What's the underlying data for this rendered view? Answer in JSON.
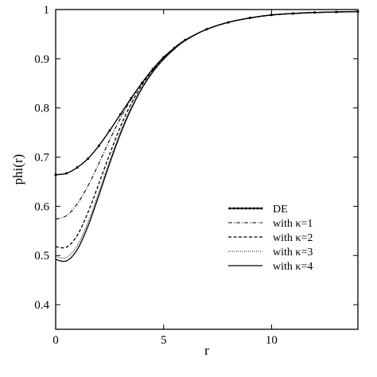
{
  "chart_data": {
    "type": "line",
    "title": "",
    "xlabel": "r",
    "ylabel": "phi(r)",
    "xlim": [
      0,
      14
    ],
    "ylim": [
      0.35,
      1.0
    ],
    "xticks": [
      0,
      5,
      10
    ],
    "yticks": [
      0.4,
      0.5,
      0.6,
      0.7,
      0.8,
      0.9,
      1
    ],
    "grid": false,
    "legend_position": "lower-right",
    "x": [
      0,
      0.5,
      1,
      1.5,
      2,
      2.5,
      3,
      3.5,
      4,
      4.5,
      5,
      5.5,
      6,
      7,
      8,
      9,
      10,
      11,
      12,
      13,
      14
    ],
    "series": [
      {
        "name": "DE",
        "style": "dotted-solid",
        "values": [
          0.664,
          0.667,
          0.679,
          0.697,
          0.723,
          0.754,
          0.787,
          0.82,
          0.851,
          0.879,
          0.903,
          0.922,
          0.938,
          0.96,
          0.974,
          0.983,
          0.989,
          0.992,
          0.994,
          0.995,
          0.996
        ]
      },
      {
        "name": "with κ=1",
        "style": "dashdot",
        "values": [
          0.574,
          0.581,
          0.605,
          0.642,
          0.687,
          0.735,
          0.779,
          0.818,
          0.851,
          0.879,
          0.903,
          0.922,
          0.938,
          0.96,
          0.974,
          0.983,
          0.989,
          0.992,
          0.994,
          0.995,
          0.996
        ]
      },
      {
        "name": "with κ=2",
        "style": "dashed",
        "values": [
          0.518,
          0.517,
          0.541,
          0.588,
          0.646,
          0.706,
          0.762,
          0.809,
          0.847,
          0.877,
          0.902,
          0.922,
          0.938,
          0.96,
          0.974,
          0.983,
          0.989,
          0.992,
          0.994,
          0.995,
          0.996
        ]
      },
      {
        "name": "with κ=3",
        "style": "dotted",
        "values": [
          0.498,
          0.496,
          0.52,
          0.568,
          0.629,
          0.693,
          0.752,
          0.802,
          0.843,
          0.875,
          0.9,
          0.921,
          0.937,
          0.96,
          0.974,
          0.983,
          0.989,
          0.992,
          0.994,
          0.995,
          0.996
        ]
      },
      {
        "name": "with κ=4",
        "style": "solid",
        "values": [
          0.492,
          0.489,
          0.512,
          0.56,
          0.622,
          0.687,
          0.747,
          0.798,
          0.84,
          0.873,
          0.899,
          0.92,
          0.937,
          0.96,
          0.974,
          0.983,
          0.989,
          0.992,
          0.994,
          0.995,
          0.996
        ]
      }
    ]
  }
}
